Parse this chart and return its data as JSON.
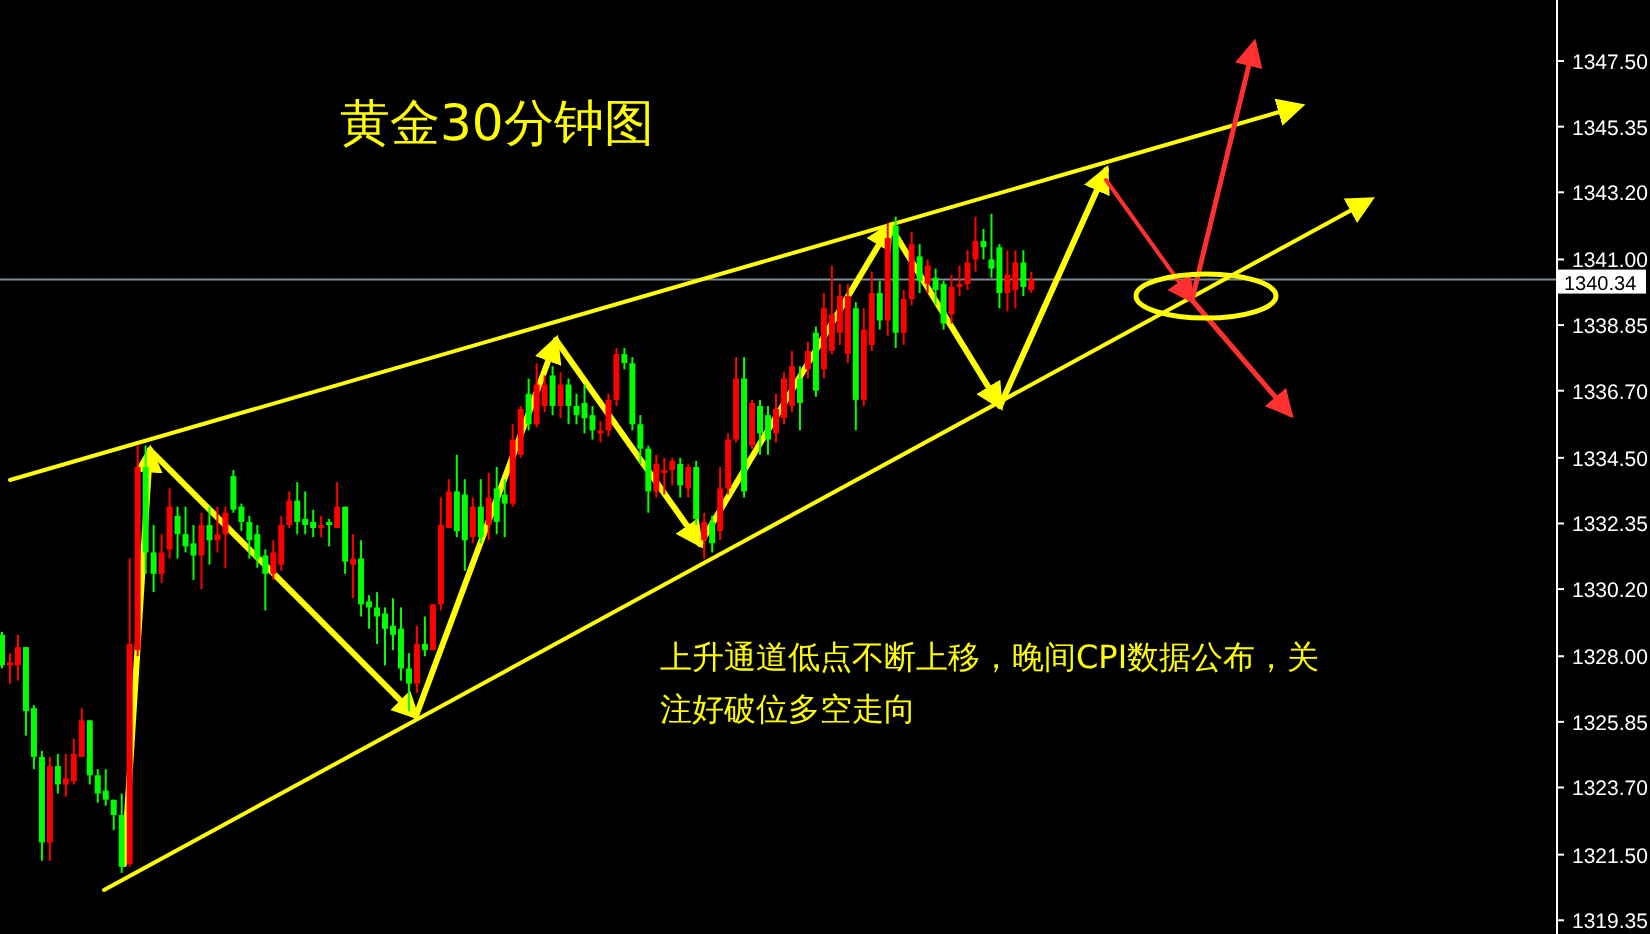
{
  "chart_data": {
    "type": "candlestick",
    "title": "黄金30分钟图",
    "annotations": [
      "上升通道低点不断上移，晚间CPI数据公布，关注好破位多空走向"
    ],
    "categories": [
      null,
      null,
      null,
      null,
      null,
      null,
      null,
      null,
      null,
      null,
      null,
      null,
      null,
      null,
      null,
      null,
      null,
      null,
      null,
      null,
      null,
      null,
      null,
      null,
      null,
      null,
      null,
      null,
      null,
      null,
      null,
      null,
      null,
      null,
      null,
      null,
      null,
      null,
      null,
      null,
      null,
      null,
      null,
      null,
      null,
      null,
      null,
      null,
      null,
      null,
      null,
      null,
      null,
      null,
      null,
      null,
      null,
      null,
      null,
      null,
      null,
      null,
      null,
      null,
      null,
      null,
      null,
      null,
      null,
      null,
      null,
      null,
      null,
      null,
      null,
      null,
      null,
      null,
      null,
      null,
      null,
      null,
      null,
      null,
      null,
      null,
      null,
      null,
      null,
      null,
      null,
      null,
      null,
      null,
      null,
      null,
      null,
      null,
      null,
      null,
      null,
      null,
      null,
      null,
      null,
      null,
      null,
      null,
      null,
      null,
      null,
      null,
      null,
      null,
      null,
      null,
      null,
      null,
      null,
      null,
      null,
      null,
      null,
      null,
      null,
      null,
      null,
      null,
      null,
      null,
      null,
      null,
      null,
      null,
      null,
      null,
      null,
      null,
      null,
      null,
      null,
      null,
      null,
      null,
      null,
      null,
      null,
      null,
      null,
      null,
      null,
      null,
      null,
      null,
      null,
      null,
      null,
      null,
      null,
      null,
      null,
      null,
      null,
      null,
      null,
      null,
      null,
      null,
      null,
      null,
      null,
      null,
      null,
      null,
      null,
      null,
      null,
      null,
      null,
      null,
      null,
      null,
      null,
      null,
      null,
      null,
      null,
      null,
      null,
      null,
      null,
      null,
      null,
      null,
      null
    ],
    "ohlc": [
      [
        1328.7,
        1328.8,
        1327.6,
        1327.7
      ],
      [
        1327.7,
        1328.1,
        1327.1,
        1327.8
      ],
      [
        1327.7,
        1328.7,
        1327.2,
        1328.3
      ],
      [
        1328.3,
        1328.3,
        1325.4,
        1326.2
      ],
      [
        1326.3,
        1326.4,
        1324.3,
        1324.7
      ],
      [
        1324.7,
        1324.9,
        1321.3,
        1321.9
      ],
      [
        1321.9,
        1324.7,
        1321.3,
        1324.4
      ],
      [
        1324.4,
        1324.8,
        1323.5,
        1323.8
      ],
      [
        1323.8,
        1324.8,
        1323.4,
        1324.0
      ],
      [
        1323.9,
        1325.3,
        1323.8,
        1324.8
      ],
      [
        1324.7,
        1326.3,
        1324.7,
        1325.9
      ],
      [
        1325.9,
        1325.9,
        1323.8,
        1324.1
      ],
      [
        1324.1,
        1324.3,
        1323.2,
        1323.5
      ],
      [
        1323.6,
        1324.3,
        1323.1,
        1323.3
      ],
      [
        1323.3,
        1323.3,
        1322.3,
        1322.8
      ],
      [
        1322.8,
        1323.5,
        1320.9,
        1321.1
      ],
      [
        1321.2,
        1331.2,
        1321.1,
        1328.4
      ],
      [
        1328.2,
        1334.9,
        1328.0,
        1334.2
      ],
      [
        1334.2,
        1334.9,
        1330.7,
        1331.4
      ],
      [
        1331.4,
        1332.3,
        1330.1,
        1330.7
      ],
      [
        1330.7,
        1332.0,
        1330.4,
        1331.4
      ],
      [
        1331.5,
        1333.5,
        1331.2,
        1332.9
      ],
      [
        1332.6,
        1332.9,
        1331.2,
        1332.0
      ],
      [
        1332.0,
        1332.9,
        1331.4,
        1331.6
      ],
      [
        1331.7,
        1332.3,
        1330.5,
        1331.3
      ],
      [
        1331.3,
        1332.7,
        1330.2,
        1332.3
      ],
      [
        1332.3,
        1332.9,
        1331.0,
        1331.8
      ],
      [
        1331.8,
        1332.9,
        1331.4,
        1332.0
      ],
      [
        1332.0,
        1332.9,
        1330.9,
        1332.7
      ],
      [
        1333.9,
        1334.1,
        1332.7,
        1332.8
      ],
      [
        1332.9,
        1333.0,
        1332.1,
        1332.4
      ],
      [
        1332.4,
        1332.6,
        1331.2,
        1331.8
      ],
      [
        1332.0,
        1332.3,
        1330.9,
        1331.2
      ],
      [
        1331.3,
        1331.5,
        1329.5,
        1330.7
      ],
      [
        1330.7,
        1331.8,
        1330.5,
        1331.4
      ],
      [
        1331.0,
        1332.6,
        1330.8,
        1332.3
      ],
      [
        1332.3,
        1333.4,
        1332.2,
        1333.1
      ],
      [
        1333.1,
        1333.7,
        1332.0,
        1332.4
      ],
      [
        1332.5,
        1333.4,
        1332.0,
        1332.3
      ],
      [
        1332.4,
        1332.8,
        1331.9,
        1332.2
      ],
      [
        1332.2,
        1332.6,
        1331.9,
        1332.3
      ],
      [
        1332.4,
        1332.5,
        1331.6,
        1332.3
      ],
      [
        1332.2,
        1333.7,
        1332.2,
        1332.9
      ],
      [
        1332.9,
        1332.9,
        1330.7,
        1331.1
      ],
      [
        1331.0,
        1332.0,
        1329.9,
        1331.2
      ],
      [
        1331.2,
        1331.8,
        1329.3,
        1329.7
      ],
      [
        1329.8,
        1330.0,
        1328.9,
        1329.6
      ],
      [
        1329.6,
        1330.1,
        1328.4,
        1329.3
      ],
      [
        1329.4,
        1329.6,
        1327.7,
        1328.9
      ],
      [
        1329.0,
        1329.9,
        1328.2,
        1328.7
      ],
      [
        1328.9,
        1329.6,
        1327.2,
        1327.6
      ],
      [
        1327.6,
        1328.1,
        1326.2,
        1327.1
      ],
      [
        1327.1,
        1329.0,
        1326.8,
        1328.4
      ],
      [
        1328.4,
        1329.3,
        1328.0,
        1328.2
      ],
      [
        1328.2,
        1329.7,
        1328.2,
        1329.7
      ],
      [
        1329.7,
        1333.2,
        1329.5,
        1332.3
      ],
      [
        1332.2,
        1333.8,
        1332.2,
        1333.4
      ],
      [
        1333.4,
        1334.6,
        1331.9,
        1332.1
      ],
      [
        1333.3,
        1333.8,
        1330.8,
        1331.8
      ],
      [
        1331.9,
        1333.2,
        1331.7,
        1332.9
      ],
      [
        1332.9,
        1333.8,
        1331.7,
        1331.9
      ],
      [
        1332.3,
        1334.0,
        1331.8,
        1333.2
      ],
      [
        1333.5,
        1334.2,
        1332.0,
        1332.4
      ],
      [
        1333.3,
        1333.8,
        1331.9,
        1333.0
      ],
      [
        1333.0,
        1335.6,
        1332.9,
        1335.1
      ],
      [
        1334.6,
        1336.2,
        1334.5,
        1336.1
      ],
      [
        1336.6,
        1337.1,
        1335.4,
        1335.6
      ],
      [
        1335.6,
        1337.6,
        1335.5,
        1336.9
      ],
      [
        1336.2,
        1337.2,
        1336.0,
        1336.9
      ],
      [
        1337.2,
        1337.5,
        1335.9,
        1336.2
      ],
      [
        1336.2,
        1337.3,
        1335.8,
        1336.9
      ],
      [
        1336.9,
        1337.1,
        1335.6,
        1336.2
      ],
      [
        1336.2,
        1336.6,
        1335.6,
        1335.9
      ],
      [
        1336.3,
        1336.9,
        1335.3,
        1335.8
      ],
      [
        1335.9,
        1336.2,
        1335.1,
        1335.4
      ],
      [
        1335.3,
        1335.7,
        1335.0,
        1335.4
      ],
      [
        1335.4,
        1336.6,
        1335.2,
        1336.4
      ],
      [
        1336.4,
        1338.1,
        1336.2,
        1337.9
      ],
      [
        1337.9,
        1338.1,
        1337.4,
        1337.6
      ],
      [
        1337.6,
        1337.8,
        1335.4,
        1335.6
      ],
      [
        1335.6,
        1335.9,
        1334.3,
        1334.8
      ],
      [
        1334.8,
        1334.9,
        1332.7,
        1333.4
      ],
      [
        1333.4,
        1334.6,
        1333.2,
        1334.3
      ],
      [
        1334.0,
        1334.5,
        1333.3,
        1334.1
      ],
      [
        1334.1,
        1334.5,
        1333.6,
        1334.4
      ],
      [
        1334.3,
        1334.5,
        1333.2,
        1333.6
      ],
      [
        1333.5,
        1334.3,
        1333.2,
        1334.2
      ],
      [
        1334.2,
        1334.4,
        1332.3,
        1332.5
      ],
      [
        1331.8,
        1332.7,
        1331.2,
        1332.4
      ],
      [
        1332.4,
        1332.6,
        1331.4,
        1331.7
      ],
      [
        1332.1,
        1334.2,
        1331.8,
        1333.5
      ],
      [
        1333.5,
        1335.3,
        1333.3,
        1335.1
      ],
      [
        1335.1,
        1337.8,
        1335.0,
        1337.1
      ],
      [
        1337.1,
        1337.8,
        1333.2,
        1333.4
      ],
      [
        1334.9,
        1336.4,
        1334.8,
        1336.3
      ],
      [
        1336.2,
        1336.4,
        1334.6,
        1335.3
      ],
      [
        1335.9,
        1336.2,
        1334.6,
        1335.1
      ],
      [
        1335.3,
        1336.6,
        1335.0,
        1336.1
      ],
      [
        1335.8,
        1337.3,
        1335.6,
        1337.1
      ],
      [
        1336.2,
        1338.0,
        1336.0,
        1337.5
      ],
      [
        1337.1,
        1337.5,
        1335.4,
        1336.3
      ],
      [
        1337.4,
        1338.3,
        1337.1,
        1338.0
      ],
      [
        1338.6,
        1338.8,
        1336.5,
        1336.7
      ],
      [
        1337.4,
        1339.9,
        1337.1,
        1339.4
      ],
      [
        1338.0,
        1340.8,
        1337.9,
        1339.2
      ],
      [
        1338.6,
        1340.2,
        1338.2,
        1339.8
      ],
      [
        1337.9,
        1340.2,
        1337.6,
        1339.8
      ],
      [
        1339.4,
        1339.6,
        1335.4,
        1336.4
      ],
      [
        1336.4,
        1339.4,
        1336.2,
        1338.7
      ],
      [
        1338.2,
        1340.6,
        1338.0,
        1339.9
      ],
      [
        1339.9,
        1340.3,
        1338.7,
        1339.0
      ],
      [
        1339.0,
        1342.2,
        1338.5,
        1341.7
      ],
      [
        1342.1,
        1342.4,
        1338.1,
        1338.6
      ],
      [
        1338.6,
        1340.0,
        1338.2,
        1339.7
      ],
      [
        1339.7,
        1341.9,
        1339.5,
        1341.5
      ],
      [
        1341.1,
        1341.5,
        1339.9,
        1340.3
      ],
      [
        1340.2,
        1341.0,
        1339.9,
        1340.8
      ],
      [
        1340.4,
        1340.7,
        1339.5,
        1340.0
      ],
      [
        1340.2,
        1340.3,
        1338.7,
        1338.9
      ],
      [
        1339.2,
        1340.5,
        1338.9,
        1340.1
      ],
      [
        1340.1,
        1340.8,
        1339.8,
        1340.2
      ],
      [
        1340.2,
        1341.3,
        1340.0,
        1340.9
      ],
      [
        1341.0,
        1342.4,
        1340.6,
        1341.6
      ],
      [
        1341.6,
        1342.0,
        1341.0,
        1341.4
      ],
      [
        1341.0,
        1342.5,
        1340.4,
        1340.7
      ],
      [
        1341.4,
        1341.5,
        1339.4,
        1339.9
      ],
      [
        1339.9,
        1341.3,
        1339.3,
        1340.5
      ],
      [
        1340.0,
        1341.3,
        1339.4,
        1340.9
      ],
      [
        1340.9,
        1341.3,
        1339.8,
        1340.1
      ],
      [
        1340.0,
        1340.6,
        1339.9,
        1340.34
      ],
      null,
      null,
      null,
      null,
      null,
      null,
      null,
      null,
      null,
      null,
      null,
      null,
      null,
      null,
      null,
      null,
      null,
      null,
      null,
      null,
      null,
      null,
      null,
      null,
      null,
      null,
      null,
      null,
      null,
      null,
      null,
      null,
      null,
      null,
      null,
      null,
      null,
      null,
      null,
      null,
      null,
      null,
      null,
      null,
      null,
      null,
      null,
      null,
      null,
      null,
      null,
      null,
      null,
      null,
      null,
      null,
      null,
      null,
      null,
      null,
      null,
      null,
      null,
      null,
      null
    ],
    "colors": [
      "#00ff00",
      "#ff0000",
      "#ff0000",
      "#00ff00",
      "#00ff00",
      "#00ff00",
      "#ff0000",
      "#00ff00",
      "#ff0000",
      "#ff0000",
      "#ff0000",
      "#00ff00",
      "#00ff00",
      "#00ff00",
      "#00ff00",
      "#00ff00",
      "#ff0000",
      "#ff0000",
      "#00ff00",
      "#00ff00",
      "#ff0000",
      "#ff0000",
      "#00ff00",
      "#00ff00",
      "#00ff00",
      "#ff0000",
      "#00ff00",
      "#ff0000",
      "#ff0000",
      "#00ff00",
      "#00ff00",
      "#00ff00",
      "#00ff00",
      "#00ff00",
      "#ff0000",
      "#ff0000",
      "#ff0000",
      "#00ff00",
      "#00ff00",
      "#00ff00",
      "#ff0000",
      "#00ff00",
      "#ff0000",
      "#00ff00",
      "#ff0000",
      "#00ff00",
      "#00ff00",
      "#00ff00",
      "#00ff00",
      "#00ff00",
      "#00ff00",
      "#00ff00",
      "#ff0000",
      "#00ff00",
      "#ff0000",
      "#ff0000",
      "#ff0000",
      "#00ff00",
      "#00ff00",
      "#ff0000",
      "#00ff00",
      "#ff0000",
      "#00ff00",
      "#00ff00",
      "#ff0000",
      "#ff0000",
      "#00ff00",
      "#ff0000",
      "#ff0000",
      "#00ff00",
      "#ff0000",
      "#00ff00",
      "#00ff00",
      "#00ff00",
      "#00ff00",
      "#ff0000",
      "#ff0000",
      "#ff0000",
      "#00ff00",
      "#00ff00",
      "#00ff00",
      "#00ff00",
      "#ff0000",
      "#ff0000",
      "#ff0000",
      "#00ff00",
      "#ff0000",
      "#00ff00",
      "#ff0000",
      "#00ff00",
      "#ff0000",
      "#ff0000",
      "#ff0000",
      "#00ff00",
      "#ff0000",
      "#00ff00",
      "#00ff00",
      "#ff0000",
      "#ff0000",
      "#ff0000",
      "#00ff00",
      "#ff0000",
      "#00ff00",
      "#ff0000",
      "#ff0000",
      "#ff0000",
      "#ff0000",
      "#00ff00",
      "#ff0000",
      "#ff0000",
      "#00ff00",
      "#ff0000",
      "#00ff00",
      "#ff0000",
      "#ff0000",
      "#00ff00",
      "#ff0000",
      "#00ff00",
      "#00ff00",
      "#ff0000",
      "#ff0000",
      "#ff0000",
      "#ff0000",
      "#00ff00",
      "#00ff00",
      "#00ff00",
      "#ff0000",
      "#ff0000",
      "#00ff00",
      "#ff0000",
      null,
      null,
      null,
      null,
      null,
      null,
      null,
      null,
      null,
      null,
      null,
      null,
      null,
      null,
      null,
      null,
      null,
      null,
      null,
      null,
      null,
      null,
      null,
      null,
      null,
      null,
      null,
      null,
      null,
      null,
      null,
      null,
      null,
      null,
      null,
      null,
      null,
      null,
      null,
      null,
      null,
      null,
      null,
      null,
      null,
      null,
      null,
      null,
      null,
      null,
      null,
      null,
      null,
      null,
      null,
      null,
      null,
      null,
      null,
      null,
      null,
      null,
      null,
      null,
      null
    ],
    "ylim": [
      1318.9,
      1349.5
    ],
    "yticks": [
      {
        "value": 1347.5,
        "label": "1347.50"
      },
      {
        "value": 1345.35,
        "label": "1345.35"
      },
      {
        "value": 1343.2,
        "label": "1343.20"
      },
      {
        "value": 1341.0,
        "label": "1341.00"
      },
      {
        "value": 1338.85,
        "label": "1338.85"
      },
      {
        "value": 1336.7,
        "label": "1336.70"
      },
      {
        "value": 1334.5,
        "label": "1334.50"
      },
      {
        "value": 1332.35,
        "label": "1332.35"
      },
      {
        "value": 1330.2,
        "label": "1330.20"
      },
      {
        "value": 1328.0,
        "label": "1328.00"
      },
      {
        "value": 1325.85,
        "label": "1325.85"
      },
      {
        "value": 1323.7,
        "label": "1323.70"
      },
      {
        "value": 1321.5,
        "label": "1321.50"
      },
      {
        "value": 1319.35,
        "label": "1319.35"
      }
    ],
    "ref_lines": [
      {
        "axis": "y",
        "value": 1340.34,
        "label": "1340.34",
        "color": "#7f8c99"
      }
    ],
    "tick_labels": "y",
    "grid": false
  }
}
